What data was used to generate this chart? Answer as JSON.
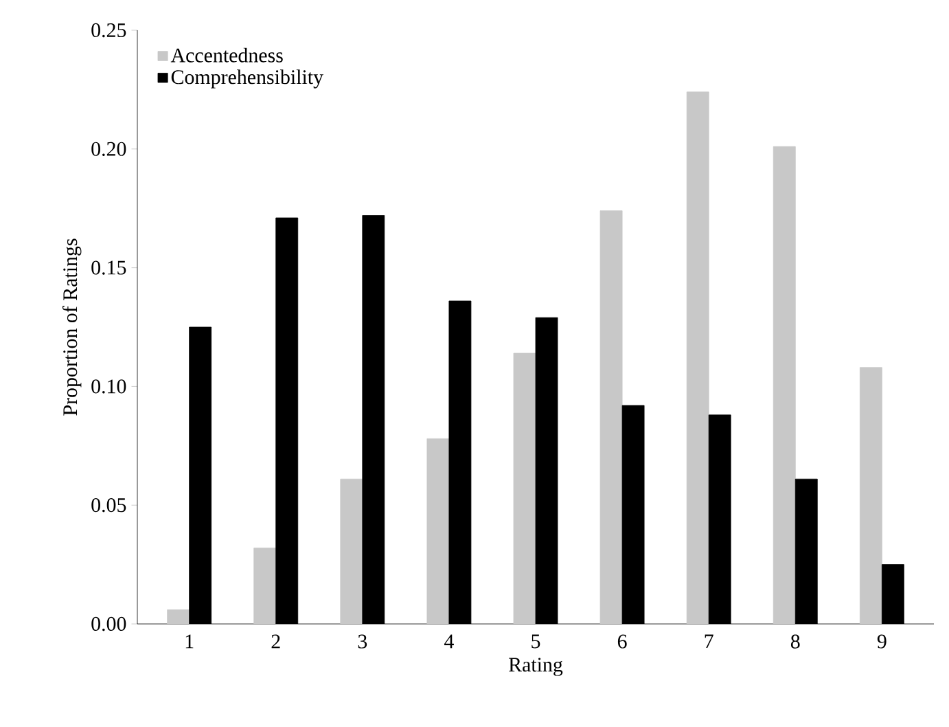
{
  "chart_data": {
    "type": "bar",
    "xlabel": "Rating",
    "ylabel": "Proportion of Ratings",
    "categories": [
      "1",
      "2",
      "3",
      "4",
      "5",
      "6",
      "7",
      "8",
      "9"
    ],
    "series": [
      {
        "name": "Accentedness",
        "color": "#c8c8c8",
        "values": [
          0.006,
          0.032,
          0.061,
          0.078,
          0.114,
          0.174,
          0.224,
          0.201,
          0.108
        ]
      },
      {
        "name": "Comprehensibility",
        "color": "#000000",
        "values": [
          0.125,
          0.171,
          0.172,
          0.136,
          0.129,
          0.092,
          0.088,
          0.061,
          0.025
        ]
      }
    ],
    "ylim": [
      0,
      0.25
    ],
    "yticks": [
      {
        "value": 0,
        "label": "0.00"
      },
      {
        "value": 0.05,
        "label": "0.05"
      },
      {
        "value": 0.1,
        "label": "0.10"
      },
      {
        "value": 0.15,
        "label": "0.15"
      },
      {
        "value": 0.2,
        "label": "0.20"
      },
      {
        "value": 0.25,
        "label": "0.25"
      }
    ],
    "legend": "top left",
    "grid": false
  }
}
